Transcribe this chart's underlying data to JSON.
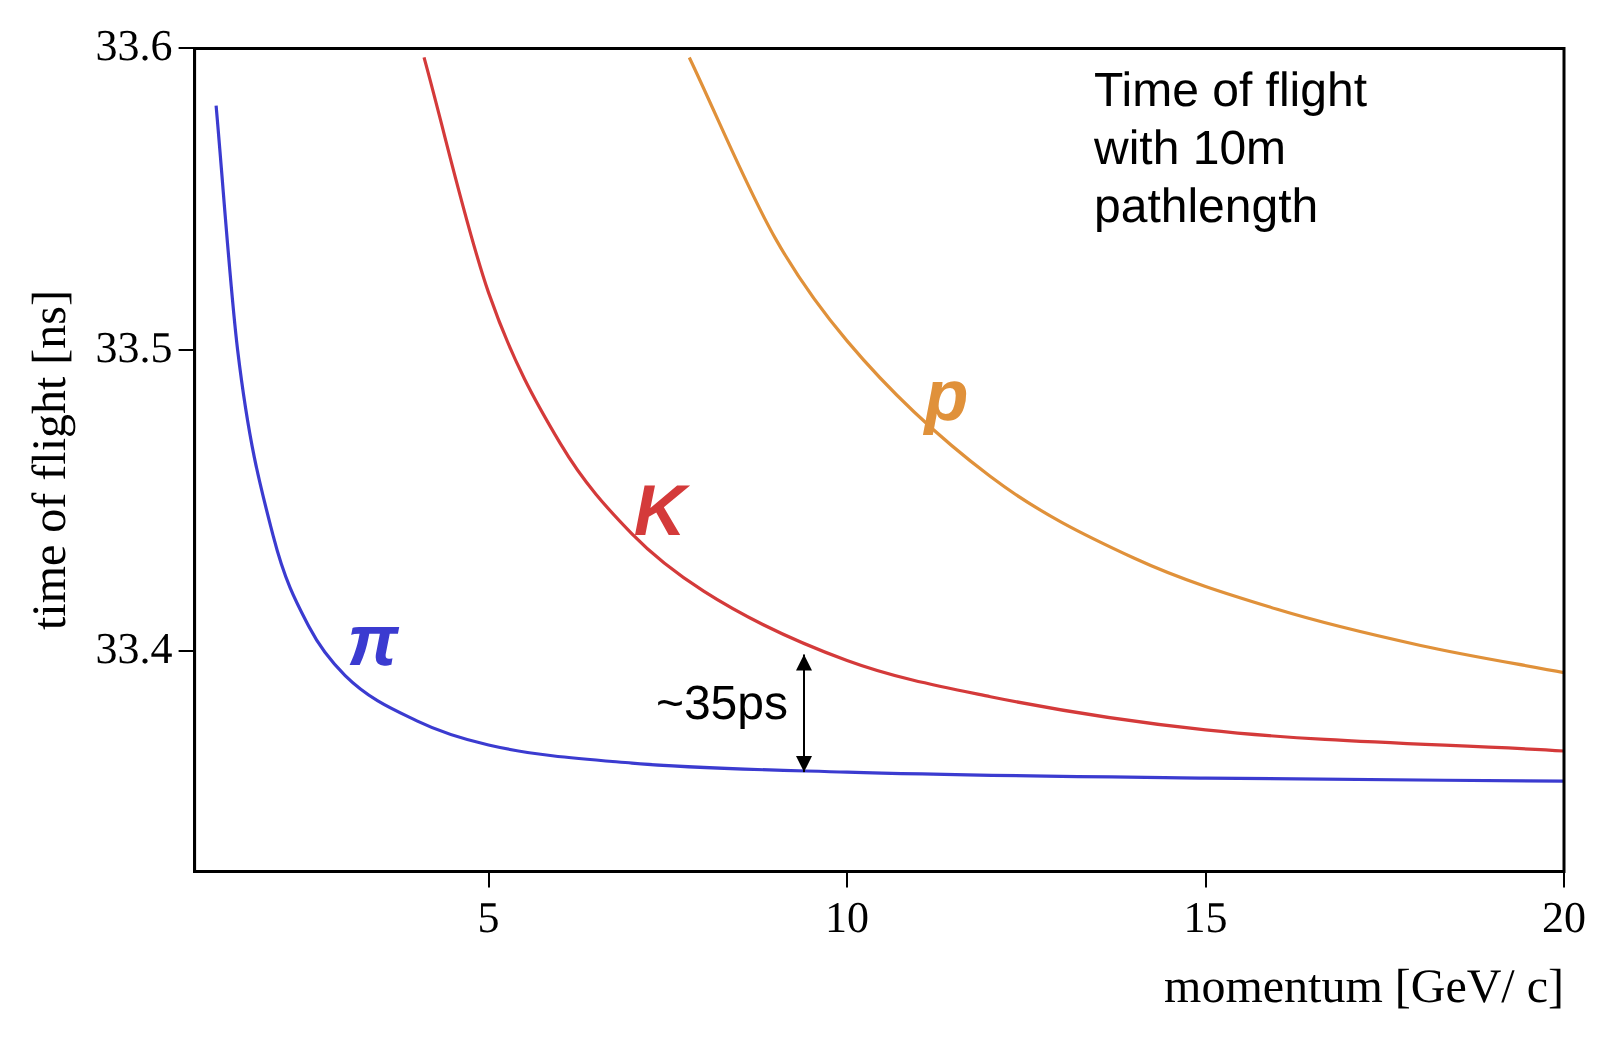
{
  "chart_data": {
    "type": "line",
    "xlabel": "momentum [GeV/ c]",
    "ylabel": "time of flight [ns]",
    "xlim": [
      0.9,
      20
    ],
    "xticks": [
      5,
      10,
      15,
      20
    ],
    "ylim": [
      33.327,
      33.6
    ],
    "yticks": [
      33.4,
      33.5,
      33.6
    ],
    "grid": false,
    "legend": false,
    "marker": "none",
    "line_style": "solid",
    "annotations": [
      "Time of flight with 10m pathlength",
      "~35ps"
    ],
    "series": [
      {
        "name": "π",
        "color": "#3b3bd0",
        "x": [
          1.2,
          1.5,
          2,
          2.5,
          3,
          4,
          5,
          7,
          10,
          15,
          20
        ],
        "values": [
          33.581,
          33.5,
          33.438,
          33.408,
          33.392,
          33.377,
          33.369,
          33.363,
          33.36,
          33.358,
          33.357
        ]
      },
      {
        "name": "K",
        "color": "#d43a3a",
        "x": [
          4.1,
          5,
          6,
          7,
          8,
          10,
          12,
          15,
          20
        ],
        "values": [
          33.597,
          33.519,
          33.469,
          33.439,
          33.42,
          33.397,
          33.385,
          33.374,
          33.367
        ]
      },
      {
        "name": "p",
        "color": "#e0913a",
        "x": [
          7.8,
          9,
          10,
          12,
          14,
          16,
          18,
          20
        ],
        "values": [
          33.597,
          33.537,
          33.503,
          33.458,
          33.431,
          33.414,
          33.402,
          33.393
        ]
      }
    ]
  }
}
